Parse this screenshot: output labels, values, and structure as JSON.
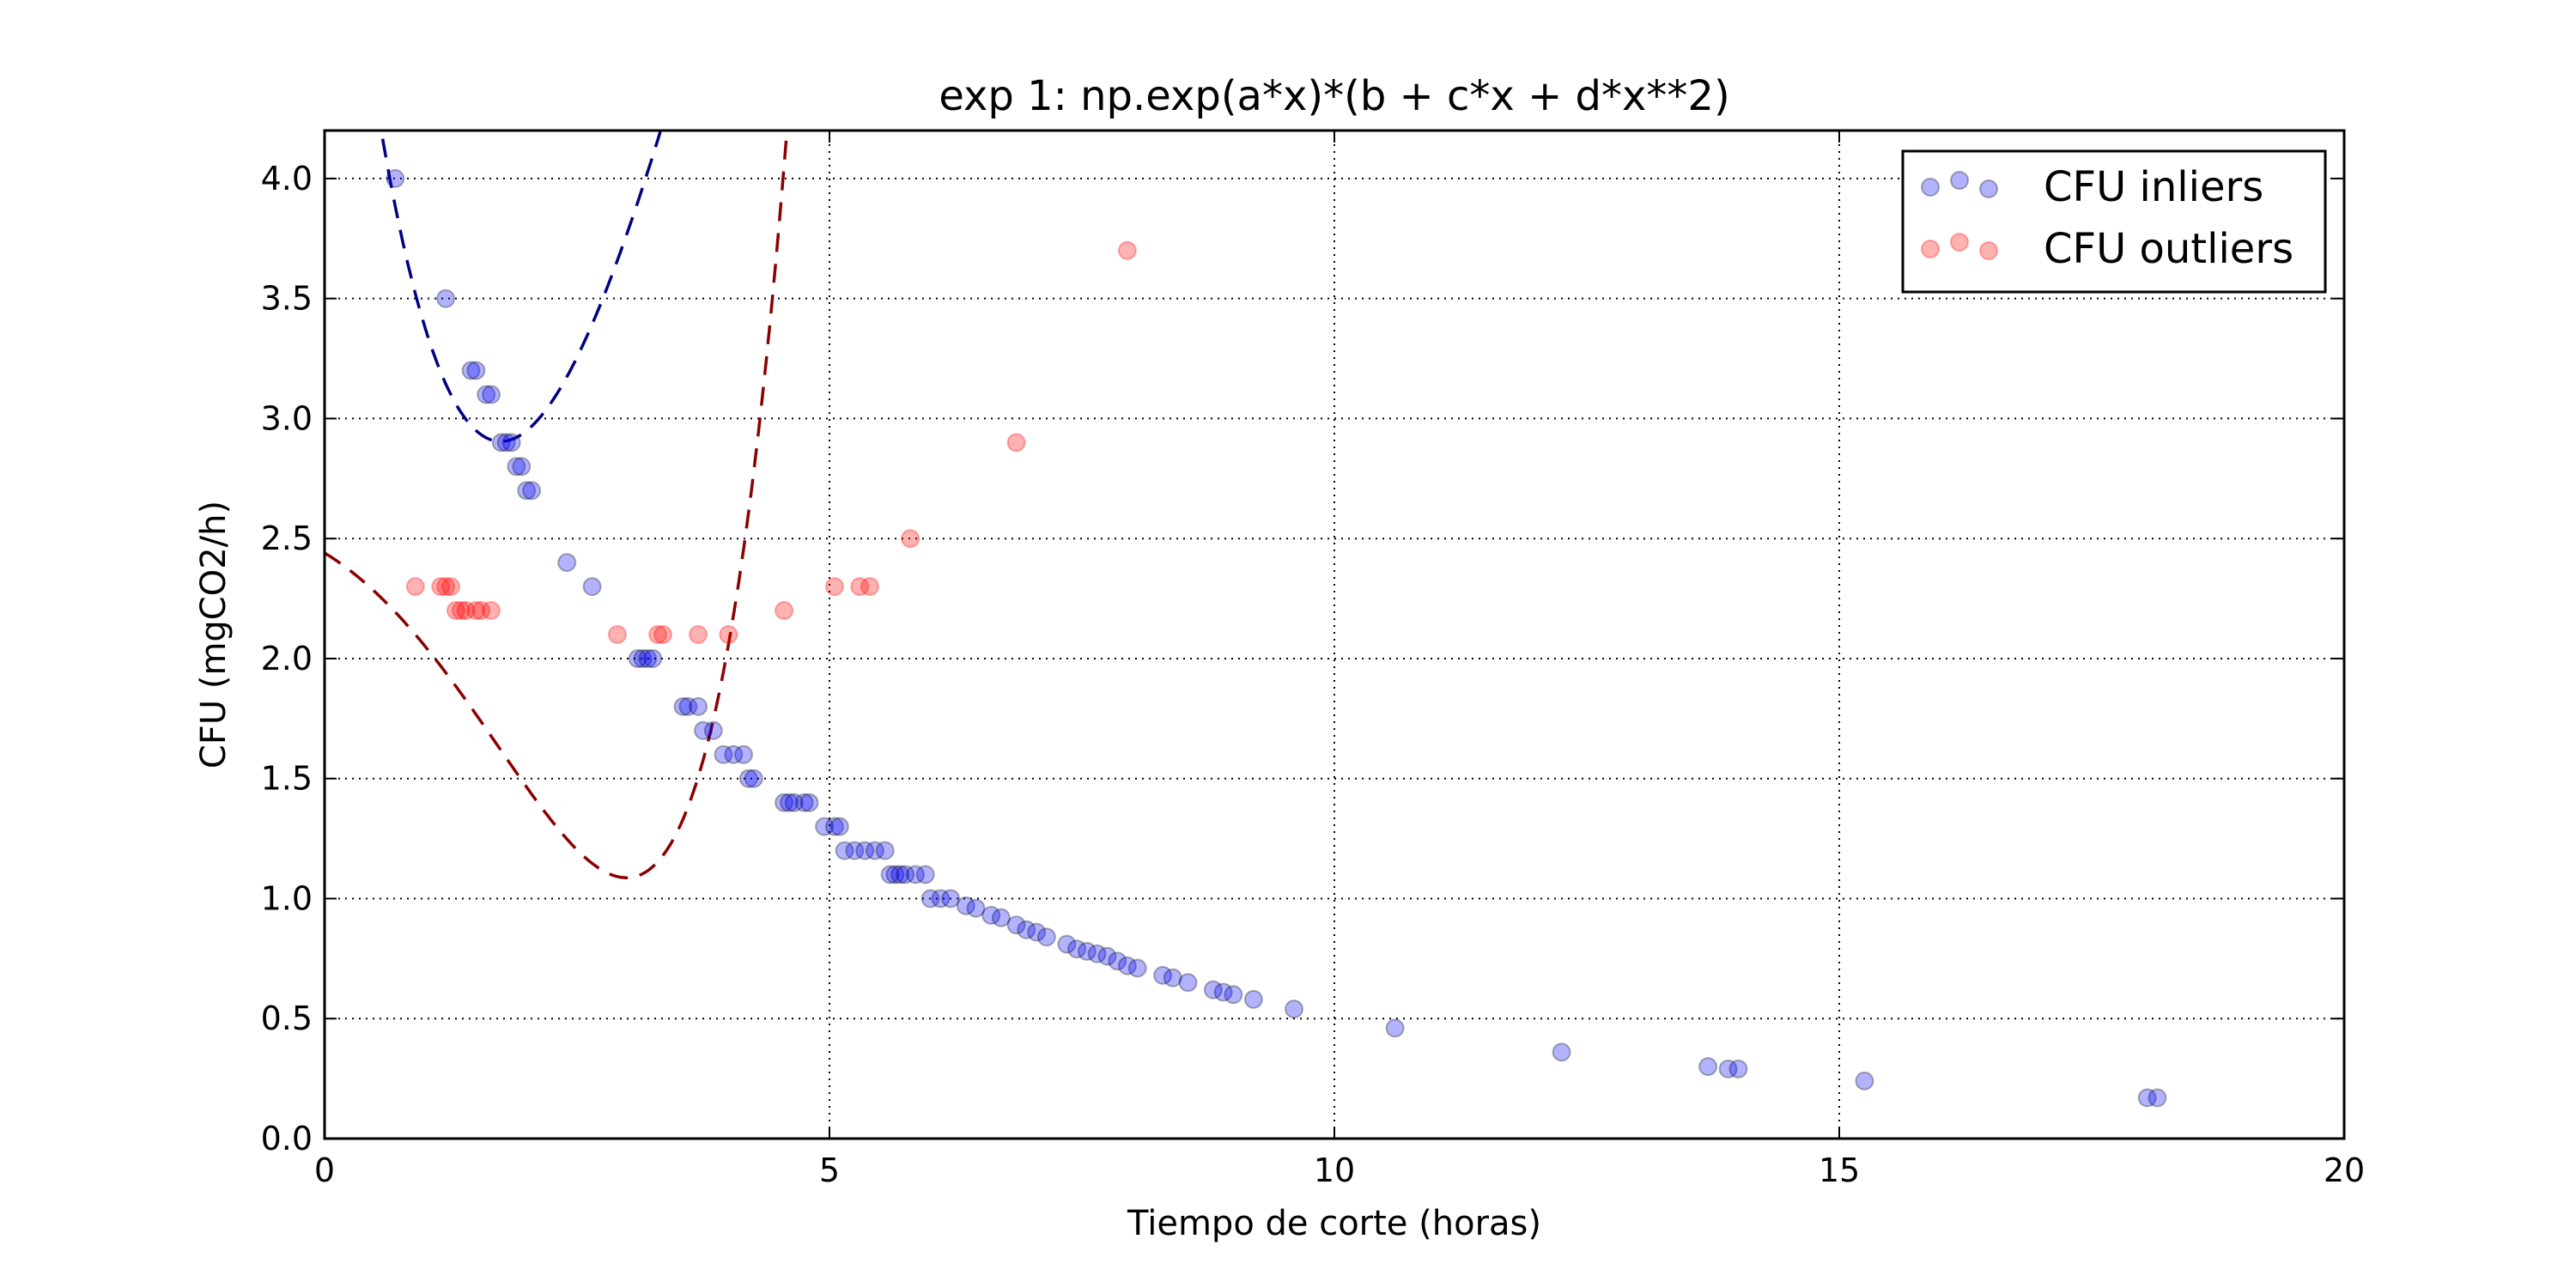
{
  "chart_data": {
    "type": "scatter",
    "title": "exp 1: np.exp(a*x)*(b + c*x + d*x**2)",
    "xlabel": "Tiempo de corte (horas)",
    "ylabel": "CFU (mgCO2/h)",
    "xlim": [
      0,
      20
    ],
    "ylim": [
      0,
      4.2
    ],
    "xticks": [
      0,
      5,
      10,
      15,
      20
    ],
    "xtick_labels": [
      "0",
      "5",
      "10",
      "15",
      "20"
    ],
    "yticks": [
      0,
      0.5,
      1.0,
      1.5,
      2.0,
      2.5,
      3.0,
      3.5,
      4.0
    ],
    "ytick_labels": [
      "0.0",
      "0.5",
      "1.0",
      "1.5",
      "2.0",
      "2.5",
      "3.0",
      "3.5",
      "4.0"
    ],
    "grid": true,
    "grid_style": "dotted",
    "legend_position": "top-right",
    "series": [
      {
        "name": "CFU inliers",
        "color": "#0000ff",
        "points": [
          [
            0.7,
            4.0
          ],
          [
            1.2,
            3.5
          ],
          [
            1.45,
            3.2
          ],
          [
            1.5,
            3.2
          ],
          [
            1.6,
            3.1
          ],
          [
            1.65,
            3.1
          ],
          [
            1.75,
            2.9
          ],
          [
            1.8,
            2.9
          ],
          [
            1.85,
            2.9
          ],
          [
            1.9,
            2.8
          ],
          [
            1.95,
            2.8
          ],
          [
            2.0,
            2.7
          ],
          [
            2.05,
            2.7
          ],
          [
            2.4,
            2.4
          ],
          [
            2.65,
            2.3
          ],
          [
            3.1,
            2.0
          ],
          [
            3.15,
            2.0
          ],
          [
            3.2,
            2.0
          ],
          [
            3.25,
            2.0
          ],
          [
            3.55,
            1.8
          ],
          [
            3.6,
            1.8
          ],
          [
            3.7,
            1.8
          ],
          [
            3.75,
            1.7
          ],
          [
            3.85,
            1.7
          ],
          [
            3.95,
            1.6
          ],
          [
            4.05,
            1.6
          ],
          [
            4.15,
            1.6
          ],
          [
            4.2,
            1.5
          ],
          [
            4.25,
            1.5
          ],
          [
            4.55,
            1.4
          ],
          [
            4.6,
            1.4
          ],
          [
            4.65,
            1.4
          ],
          [
            4.75,
            1.4
          ],
          [
            4.8,
            1.4
          ],
          [
            4.95,
            1.3
          ],
          [
            5.05,
            1.3
          ],
          [
            5.1,
            1.3
          ],
          [
            5.15,
            1.2
          ],
          [
            5.25,
            1.2
          ],
          [
            5.35,
            1.2
          ],
          [
            5.45,
            1.2
          ],
          [
            5.55,
            1.2
          ],
          [
            5.6,
            1.1
          ],
          [
            5.65,
            1.1
          ],
          [
            5.7,
            1.1
          ],
          [
            5.75,
            1.1
          ],
          [
            5.85,
            1.1
          ],
          [
            5.95,
            1.1
          ],
          [
            6.0,
            1.0
          ],
          [
            6.1,
            1.0
          ],
          [
            6.2,
            1.0
          ],
          [
            6.35,
            0.97
          ],
          [
            6.45,
            0.96
          ],
          [
            6.6,
            0.93
          ],
          [
            6.7,
            0.92
          ],
          [
            6.85,
            0.89
          ],
          [
            6.95,
            0.87
          ],
          [
            7.05,
            0.86
          ],
          [
            7.15,
            0.84
          ],
          [
            7.35,
            0.81
          ],
          [
            7.45,
            0.79
          ],
          [
            7.55,
            0.78
          ],
          [
            7.65,
            0.77
          ],
          [
            7.75,
            0.76
          ],
          [
            7.85,
            0.74
          ],
          [
            7.95,
            0.72
          ],
          [
            8.05,
            0.71
          ],
          [
            8.3,
            0.68
          ],
          [
            8.4,
            0.67
          ],
          [
            8.55,
            0.65
          ],
          [
            8.8,
            0.62
          ],
          [
            8.9,
            0.61
          ],
          [
            9.0,
            0.6
          ],
          [
            9.2,
            0.58
          ],
          [
            9.6,
            0.54
          ],
          [
            10.6,
            0.46
          ],
          [
            12.25,
            0.36
          ],
          [
            13.7,
            0.3
          ],
          [
            13.9,
            0.29
          ],
          [
            14.0,
            0.29
          ],
          [
            15.25,
            0.24
          ],
          [
            18.05,
            0.17
          ],
          [
            18.15,
            0.17
          ]
        ]
      },
      {
        "name": "CFU outliers",
        "color": "#ff0000",
        "points": [
          [
            0.9,
            2.3
          ],
          [
            1.15,
            2.3
          ],
          [
            1.2,
            2.3
          ],
          [
            1.25,
            2.3
          ],
          [
            1.3,
            2.2
          ],
          [
            1.35,
            2.2
          ],
          [
            1.4,
            2.2
          ],
          [
            1.5,
            2.2
          ],
          [
            1.55,
            2.2
          ],
          [
            1.65,
            2.2
          ],
          [
            2.9,
            2.1
          ],
          [
            3.3,
            2.1
          ],
          [
            3.35,
            2.1
          ],
          [
            3.7,
            2.1
          ],
          [
            4.0,
            2.1
          ],
          [
            4.55,
            2.2
          ],
          [
            5.05,
            2.3
          ],
          [
            5.3,
            2.3
          ],
          [
            5.4,
            2.3
          ],
          [
            5.8,
            2.5
          ],
          [
            6.85,
            2.9
          ],
          [
            7.95,
            3.7
          ]
        ]
      }
    ],
    "fits": [
      {
        "series": "CFU inliers",
        "color": "#000080",
        "style": "dashed",
        "x_range": [
          0,
          20
        ],
        "model": "np.exp(a*x)*(b + c*x + d*x**2)"
      },
      {
        "series": "CFU outliers",
        "color": "#8b0000",
        "style": "dashed",
        "x_range": [
          0,
          8.45
        ],
        "model": "np.exp(a*x)*(b + c*x + d*x**2)"
      }
    ]
  }
}
